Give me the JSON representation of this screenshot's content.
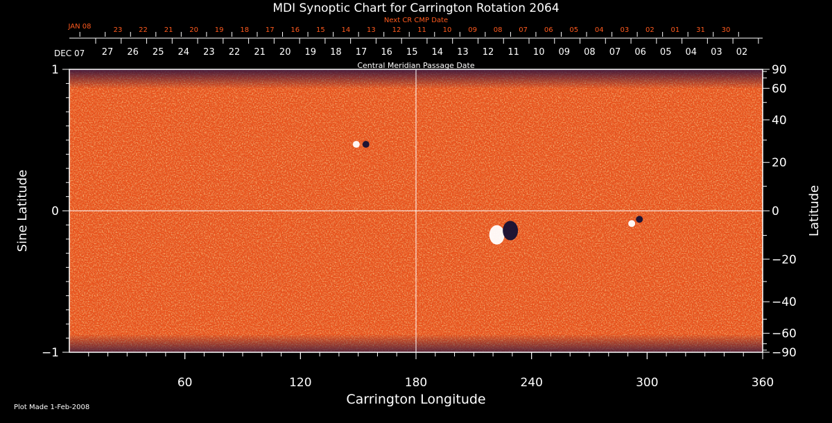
{
  "colors": {
    "background": "#000000",
    "axis": "#ffffff",
    "next_cr_text": "#ff5a1e",
    "map_base": "#e8521c"
  },
  "plot_made": "Plot Made  1-Feb-2008",
  "chart_data": {
    "type": "heatmap",
    "title": "MDI Synoptic Chart for Carrington Rotation 2064",
    "xlabel": "Carrington Longitude",
    "ylabel_left": "Sine Latitude",
    "ylabel_right": "Latitude",
    "xlim": [
      0,
      360
    ],
    "ylim_sine": [
      -1,
      1
    ],
    "x_ticks": [
      60,
      120,
      180,
      240,
      300,
      360
    ],
    "y_left_ticks": [
      {
        "value": 1,
        "label": "1"
      },
      {
        "value": 0,
        "label": "0"
      },
      {
        "value": -1,
        "label": "−1"
      }
    ],
    "y_right_ticks": [
      {
        "lat": 90,
        "label": "90"
      },
      {
        "lat": 60,
        "label": "60"
      },
      {
        "lat": 40,
        "label": "40"
      },
      {
        "lat": 20,
        "label": "20"
      },
      {
        "lat": 0,
        "label": "0"
      },
      {
        "lat": -20,
        "label": "−20"
      },
      {
        "lat": -40,
        "label": "−40"
      },
      {
        "lat": -60,
        "label": "−60"
      },
      {
        "lat": -90,
        "label": "−90"
      }
    ],
    "cmp_axis": {
      "label": "Central Meridian Passage Date",
      "start_label": "DEC 07",
      "dates": [
        "27",
        "26",
        "25",
        "24",
        "23",
        "22",
        "21",
        "20",
        "19",
        "18",
        "17",
        "16",
        "15",
        "14",
        "13",
        "12",
        "11",
        "10",
        "09",
        "08",
        "07",
        "06",
        "05",
        "04",
        "03",
        "02"
      ]
    },
    "next_cr_axis": {
      "label": "Next CR CMP Date",
      "start_label": "JAN 08",
      "dates": [
        "23",
        "22",
        "21",
        "20",
        "19",
        "18",
        "17",
        "16",
        "15",
        "14",
        "13",
        "12",
        "11",
        "10",
        "09",
        "08",
        "07",
        "06",
        "05",
        "04",
        "03",
        "02",
        "01",
        "31",
        "30"
      ]
    },
    "active_regions": [
      {
        "lon": 222,
        "sinlat": -0.17,
        "polarity": "positive"
      },
      {
        "lon": 229,
        "sinlat": -0.14,
        "polarity": "negative"
      },
      {
        "lon": 149,
        "sinlat": 0.47,
        "polarity": "positive"
      },
      {
        "lon": 154,
        "sinlat": 0.47,
        "polarity": "negative"
      },
      {
        "lon": 292,
        "sinlat": -0.09,
        "polarity": "positive"
      },
      {
        "lon": 296,
        "sinlat": -0.06,
        "polarity": "negative"
      }
    ]
  }
}
